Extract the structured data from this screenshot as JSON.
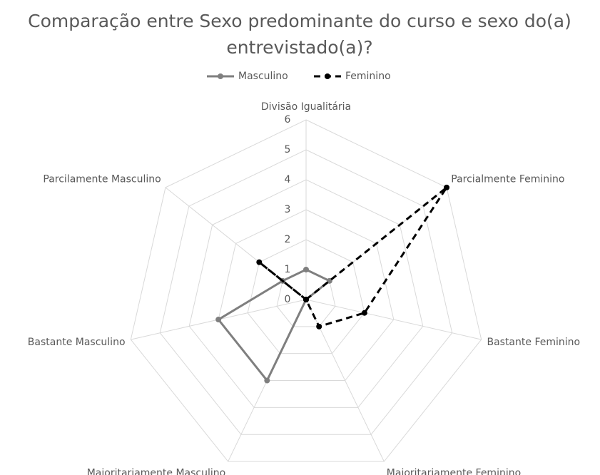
{
  "chart_data": {
    "type": "radar",
    "title": [
      "Comparação entre Sexo predominante do curso e sexo do(a)",
      "entrevistado(a)?"
    ],
    "categories": [
      "Divisão Igualitária",
      "Parcialmente Feminino",
      "Bastante Feminino",
      "Maioritariamente Feminino",
      "Maioritariamente Masculino",
      "Bastante Masculino",
      "Parcilamente Masculino"
    ],
    "series": [
      {
        "name": "Masculino",
        "color": "#7f7f7f",
        "dash": false,
        "values": [
          1,
          1,
          0,
          0,
          3,
          3,
          1
        ]
      },
      {
        "name": "Feminino",
        "color": "#000000",
        "dash": true,
        "values": [
          0,
          6,
          2,
          1,
          0,
          0,
          2
        ]
      }
    ],
    "ylim": [
      0,
      6
    ],
    "yticks": [
      0,
      1,
      2,
      3,
      4,
      5,
      6
    ],
    "grid": true,
    "legend": "top"
  }
}
